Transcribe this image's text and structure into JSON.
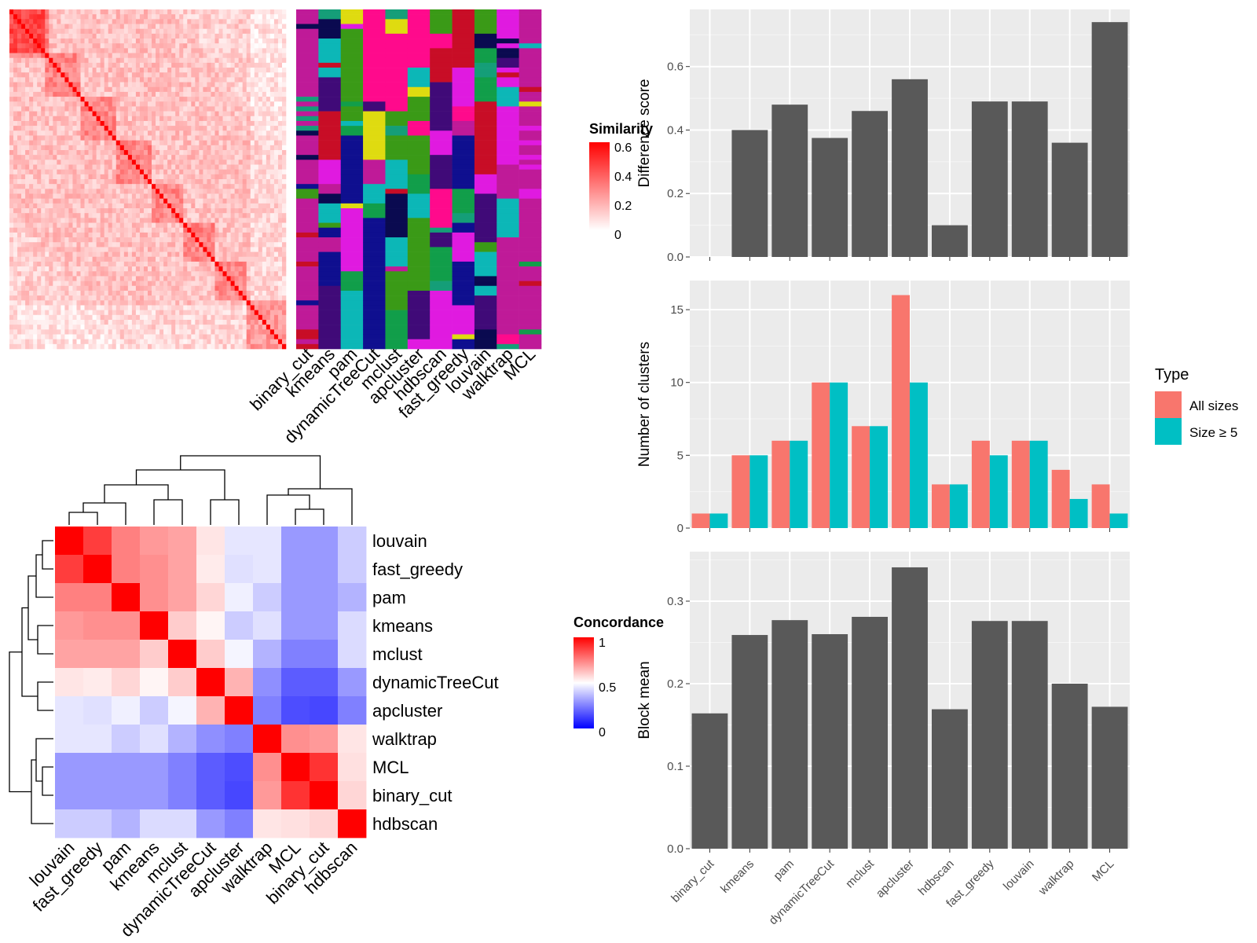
{
  "methods_order": [
    "binary_cut",
    "kmeans",
    "pam",
    "dynamicTreeCut",
    "mclust",
    "apcluster",
    "hdbscan",
    "fast_greedy",
    "louvain",
    "walktrap",
    "MCL"
  ],
  "similarity_legend": {
    "title": "Similarity",
    "ticks": [
      "0.6",
      "0.4",
      "0.2",
      "0"
    ]
  },
  "concordance_legend": {
    "title": "Concordance",
    "ticks": [
      "1",
      "0.5",
      "0"
    ]
  },
  "type_legend": {
    "title": "Type",
    "items": [
      {
        "label": "All sizes",
        "color": "#F8766D"
      },
      {
        "label": "Size ≥ 5",
        "color": "#00BFC4"
      }
    ]
  },
  "colors": {
    "bar": "#595959",
    "panel_bg": "#EBEBEB",
    "similarity_high": "#FF0000",
    "conc_high": "#FF0000",
    "conc_mid": "#FFFFFF",
    "conc_low": "#0000FF"
  },
  "chart_data": [
    {
      "type": "bar",
      "ylabel": "Difference score",
      "categories": [
        "binary_cut",
        "kmeans",
        "pam",
        "dynamicTreeCut",
        "mclust",
        "apcluster",
        "hdbscan",
        "fast_greedy",
        "louvain",
        "walktrap",
        "MCL"
      ],
      "values": [
        0,
        0.4,
        0.48,
        0.375,
        0.46,
        0.56,
        0.1,
        0.49,
        0.49,
        0.36,
        0.74
      ],
      "ylim": [
        0,
        0.78
      ],
      "yticks": [
        "0.0",
        "0.2",
        "0.4",
        "0.6"
      ],
      "grid": true
    },
    {
      "type": "bar",
      "ylabel": "Number of clusters",
      "categories": [
        "binary_cut",
        "kmeans",
        "pam",
        "dynamicTreeCut",
        "mclust",
        "apcluster",
        "hdbscan",
        "fast_greedy",
        "louvain",
        "walktrap",
        "MCL"
      ],
      "series": [
        {
          "name": "All sizes",
          "values": [
            1,
            5,
            6,
            10,
            7,
            16,
            3,
            6,
            6,
            4,
            3
          ]
        },
        {
          "name": "Size ≥ 5",
          "values": [
            1,
            5,
            6,
            10,
            7,
            10,
            3,
            5,
            6,
            2,
            1
          ]
        }
      ],
      "ylim": [
        0,
        17
      ],
      "yticks": [
        "0",
        "5",
        "10",
        "15"
      ],
      "grid": true,
      "legend": "right"
    },
    {
      "type": "bar",
      "ylabel": "Block mean",
      "categories": [
        "binary_cut",
        "kmeans",
        "pam",
        "dynamicTreeCut",
        "mclust",
        "apcluster",
        "hdbscan",
        "fast_greedy",
        "louvain",
        "walktrap",
        "MCL"
      ],
      "values": [
        0.164,
        0.259,
        0.277,
        0.26,
        0.281,
        0.341,
        0.169,
        0.276,
        0.276,
        0.2,
        0.172
      ],
      "ylim": [
        0,
        0.36
      ],
      "yticks": [
        "0.0",
        "0.1",
        "0.2",
        "0.3"
      ],
      "grid": true
    },
    {
      "type": "heatmap",
      "title": "",
      "rows": [
        "louvain",
        "fast_greedy",
        "pam",
        "kmeans",
        "mclust",
        "dynamicTreeCut",
        "apcluster",
        "walktrap",
        "MCL",
        "binary_cut",
        "hdbscan"
      ],
      "columns": [
        "louvain",
        "fast_greedy",
        "pam",
        "kmeans",
        "mclust",
        "dynamicTreeCut",
        "apcluster",
        "walktrap",
        "MCL",
        "binary_cut",
        "hdbscan"
      ],
      "values": [
        [
          1.0,
          0.88,
          0.75,
          0.7,
          0.68,
          0.55,
          0.45,
          0.45,
          0.3,
          0.3,
          0.4
        ],
        [
          0.88,
          1.0,
          0.75,
          0.72,
          0.68,
          0.54,
          0.44,
          0.45,
          0.3,
          0.3,
          0.4
        ],
        [
          0.75,
          0.75,
          1.0,
          0.72,
          0.68,
          0.58,
          0.47,
          0.4,
          0.3,
          0.3,
          0.35
        ],
        [
          0.7,
          0.72,
          0.72,
          1.0,
          0.6,
          0.52,
          0.4,
          0.44,
          0.3,
          0.3,
          0.43
        ],
        [
          0.68,
          0.68,
          0.68,
          0.6,
          1.0,
          0.6,
          0.48,
          0.35,
          0.25,
          0.25,
          0.43
        ],
        [
          0.55,
          0.54,
          0.58,
          0.52,
          0.6,
          1.0,
          0.65,
          0.28,
          0.18,
          0.18,
          0.3
        ],
        [
          0.45,
          0.44,
          0.47,
          0.4,
          0.48,
          0.65,
          1.0,
          0.25,
          0.15,
          0.14,
          0.25
        ],
        [
          0.45,
          0.45,
          0.4,
          0.44,
          0.35,
          0.28,
          0.25,
          1.0,
          0.72,
          0.7,
          0.55
        ],
        [
          0.3,
          0.3,
          0.3,
          0.3,
          0.25,
          0.18,
          0.15,
          0.72,
          1.0,
          0.9,
          0.56
        ],
        [
          0.3,
          0.3,
          0.3,
          0.3,
          0.25,
          0.18,
          0.14,
          0.7,
          0.9,
          1.0,
          0.58
        ],
        [
          0.4,
          0.4,
          0.35,
          0.43,
          0.43,
          0.3,
          0.25,
          0.55,
          0.56,
          0.58,
          1.0
        ]
      ],
      "range": [
        0,
        1
      ]
    }
  ]
}
